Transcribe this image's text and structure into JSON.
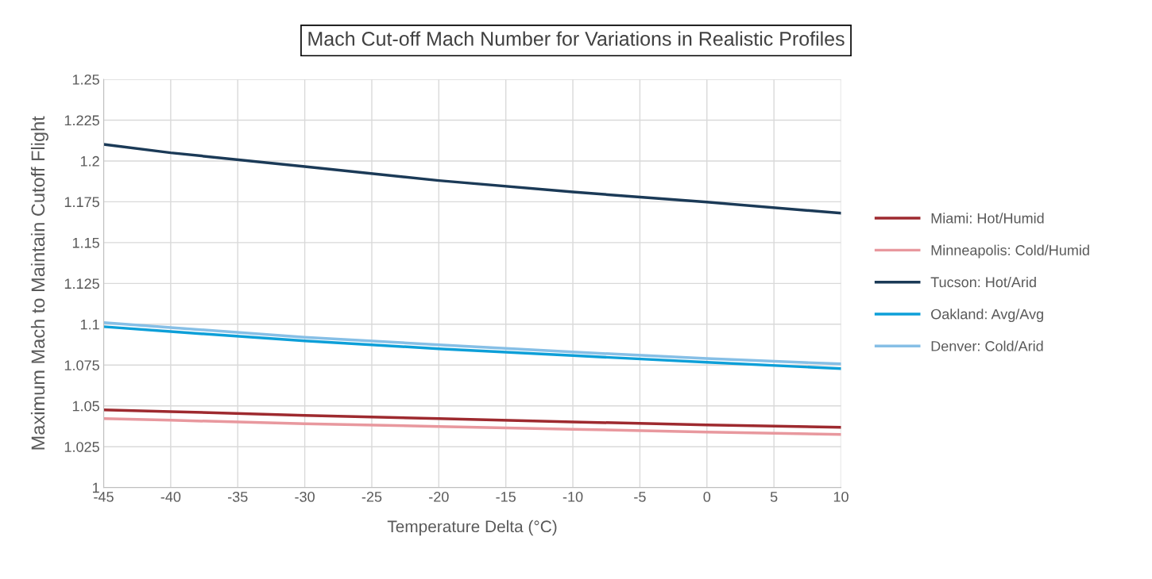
{
  "chart_data": {
    "type": "line",
    "title": "Mach Cut-off Mach Number for Variations in Realistic Profiles",
    "xlabel": "Temperature Delta (°C)",
    "ylabel": "Maximum Mach to Maintain Cutoff Flight",
    "x": [
      -45,
      -40,
      -30,
      -20,
      -10,
      0,
      10
    ],
    "series": [
      {
        "name": "Miami: Hot/Humid",
        "color": "#9e2a2f",
        "values": [
          1.0476,
          1.0465,
          1.0442,
          1.0422,
          1.0402,
          1.0383,
          1.0369
        ]
      },
      {
        "name": "Minneapolis: Cold/Humid",
        "color": "#e8989e",
        "values": [
          1.0422,
          1.0412,
          1.0391,
          1.0374,
          1.0357,
          1.034,
          1.0325
        ]
      },
      {
        "name": "Tucson: Hot/Arid",
        "color": "#1b3a57",
        "values": [
          1.2102,
          1.205,
          1.1966,
          1.188,
          1.181,
          1.1748,
          1.168
        ]
      },
      {
        "name": "Oakland: Avg/Avg",
        "color": "#0d9fd8",
        "values": [
          1.0985,
          1.0955,
          1.0898,
          1.085,
          1.0808,
          1.0767,
          1.0728
        ]
      },
      {
        "name": "Denver: Cold/Arid",
        "color": "#86bfe6",
        "values": [
          1.101,
          1.098,
          1.092,
          1.0874,
          1.083,
          1.079,
          1.0757
        ]
      }
    ],
    "xlim": [
      -45,
      10
    ],
    "xticks": [
      -45,
      -40,
      -35,
      -30,
      -25,
      -20,
      -15,
      -10,
      -5,
      0,
      5,
      10
    ],
    "ylim": [
      1,
      1.25
    ],
    "yticks": [
      1,
      1.025,
      1.05,
      1.075,
      1.1,
      1.125,
      1.15,
      1.175,
      1.2,
      1.225,
      1.25
    ],
    "grid": true,
    "legend": "right",
    "marker": "none",
    "line_style": "solid"
  }
}
